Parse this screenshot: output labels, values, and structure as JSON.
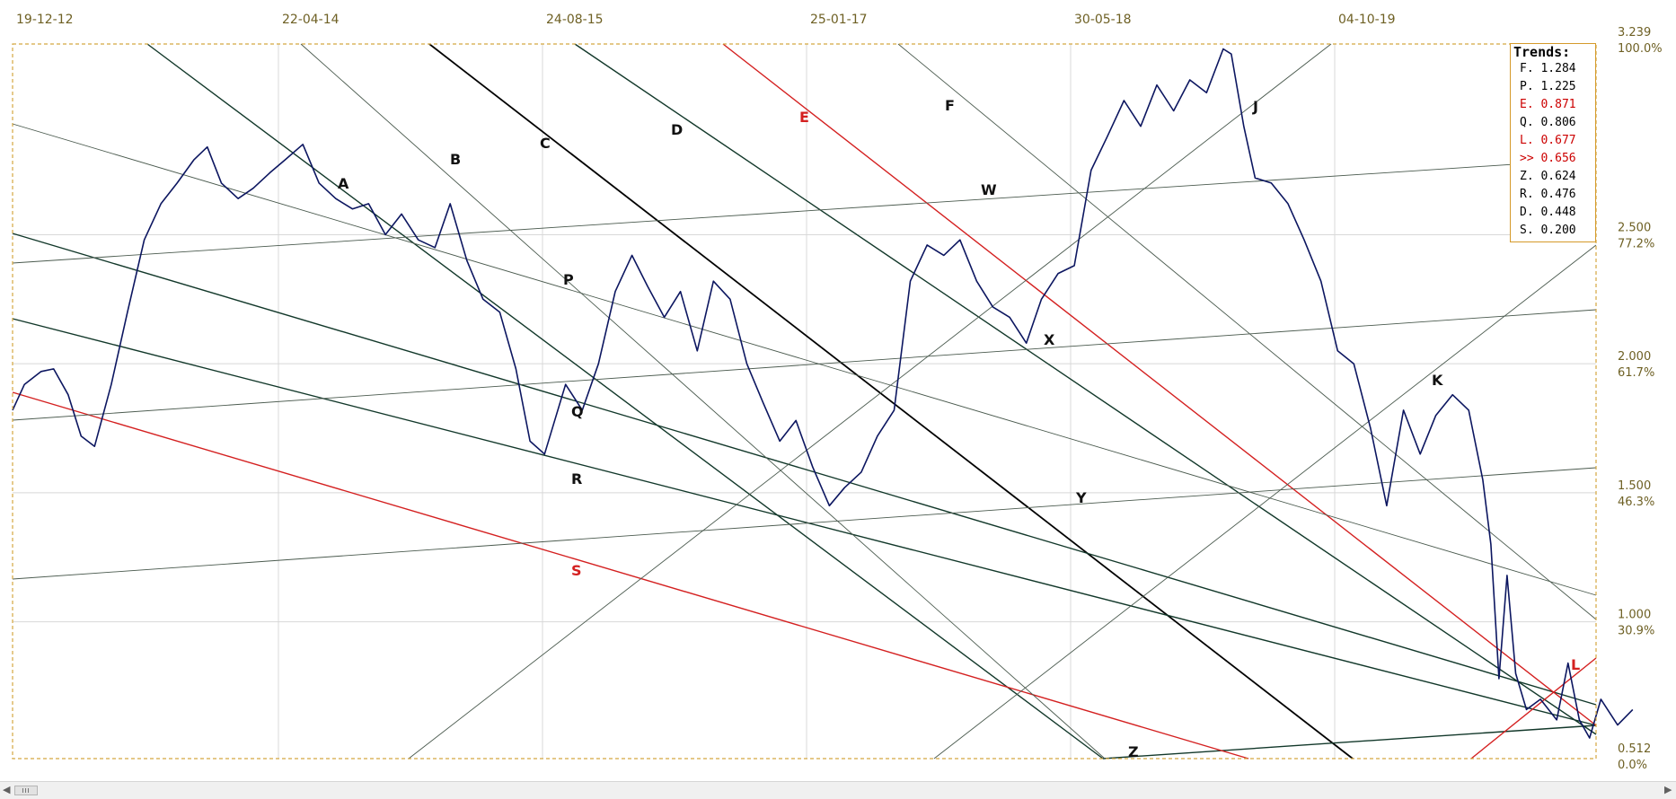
{
  "chart_data": {
    "type": "line",
    "title": "",
    "xlabel": "",
    "ylabel": "",
    "x_tick_labels": [
      "19-12-12",
      "22-04-14",
      "24-08-15",
      "25-01-17",
      "30-05-18",
      "04-10-19"
    ],
    "y_ticks": [
      {
        "value": 3.239,
        "value_label": "3.239",
        "pct_label": "100.0%"
      },
      {
        "value": 2.5,
        "value_label": "2.500",
        "pct_label": "77.2%"
      },
      {
        "value": 2.0,
        "value_label": "2.000",
        "pct_label": "61.7%"
      },
      {
        "value": 1.5,
        "value_label": "1.500",
        "pct_label": "46.3%"
      },
      {
        "value": 1.0,
        "value_label": "1.000",
        "pct_label": "30.9%"
      },
      {
        "value": 0.512,
        "value_label": "0.512",
        "pct_label": "0.0%"
      }
    ],
    "xlim": [
      "2012-12-19",
      "2021-01-01"
    ],
    "ylim": [
      0.47,
      3.239
    ],
    "grid": true,
    "legend_position": "top-right",
    "colors": {
      "price": "#0c1660",
      "dark_line": "#12382a",
      "red_line": "#d42020",
      "black_line": "#000000",
      "thin_line": "#4a5a4e",
      "frame": "#d4a640",
      "axis_text": "#6e6024"
    },
    "series": [
      {
        "values": [
          [
            "2012-12-19",
            1.82
          ],
          [
            "2013-01-10",
            1.92
          ],
          [
            "2013-02-10",
            1.97
          ],
          [
            "2013-03-05",
            1.98
          ],
          [
            "2013-04-01",
            1.88
          ],
          [
            "2013-04-25",
            1.72
          ],
          [
            "2013-05-20",
            1.68
          ],
          [
            "2013-06-20",
            1.92
          ],
          [
            "2013-07-20",
            2.2
          ],
          [
            "2013-08-20",
            2.48
          ],
          [
            "2013-09-20",
            2.62
          ],
          [
            "2013-10-20",
            2.7
          ],
          [
            "2013-11-20",
            2.79
          ],
          [
            "2013-12-15",
            2.84
          ],
          [
            "2014-01-10",
            2.7
          ],
          [
            "2014-02-10",
            2.64
          ],
          [
            "2014-03-10",
            2.68
          ],
          [
            "2014-04-10",
            2.74
          ],
          [
            "2014-05-08",
            2.79
          ],
          [
            "2014-06-10",
            2.85
          ],
          [
            "2014-07-10",
            2.7
          ],
          [
            "2014-08-10",
            2.64
          ],
          [
            "2014-09-10",
            2.6
          ],
          [
            "2014-10-10",
            2.62
          ],
          [
            "2014-11-10",
            2.5
          ],
          [
            "2014-12-10",
            2.58
          ],
          [
            "2015-01-10",
            2.48
          ],
          [
            "2015-02-10",
            2.45
          ],
          [
            "2015-03-10",
            2.62
          ],
          [
            "2015-04-10",
            2.4
          ],
          [
            "2015-05-10",
            2.25
          ],
          [
            "2015-06-10",
            2.2
          ],
          [
            "2015-07-10",
            1.98
          ],
          [
            "2015-08-05",
            1.7
          ],
          [
            "2015-09-01",
            1.65
          ],
          [
            "2015-10-10",
            1.92
          ],
          [
            "2015-11-10",
            1.82
          ],
          [
            "2015-12-10",
            2.0
          ],
          [
            "2016-01-10",
            2.28
          ],
          [
            "2016-02-10",
            2.42
          ],
          [
            "2016-03-10",
            2.3
          ],
          [
            "2016-04-10",
            2.18
          ],
          [
            "2016-05-10",
            2.28
          ],
          [
            "2016-06-10",
            2.05
          ],
          [
            "2016-07-10",
            2.32
          ],
          [
            "2016-08-10",
            2.25
          ],
          [
            "2016-09-10",
            2.0
          ],
          [
            "2016-10-10",
            1.85
          ],
          [
            "2016-11-10",
            1.7
          ],
          [
            "2016-12-10",
            1.78
          ],
          [
            "2017-01-10",
            1.6
          ],
          [
            "2017-02-10",
            1.45
          ],
          [
            "2017-03-10",
            1.52
          ],
          [
            "2017-04-10",
            1.58
          ],
          [
            "2017-05-10",
            1.72
          ],
          [
            "2017-06-10",
            1.82
          ],
          [
            "2017-07-10",
            2.32
          ],
          [
            "2017-08-10",
            2.46
          ],
          [
            "2017-09-10",
            2.42
          ],
          [
            "2017-10-10",
            2.48
          ],
          [
            "2017-11-10",
            2.32
          ],
          [
            "2017-12-10",
            2.22
          ],
          [
            "2018-01-10",
            2.18
          ],
          [
            "2018-02-10",
            2.08
          ],
          [
            "2018-03-10",
            2.25
          ],
          [
            "2018-04-10",
            2.35
          ],
          [
            "2018-05-10",
            2.38
          ],
          [
            "2018-06-10",
            2.75
          ],
          [
            "2018-07-10",
            2.88
          ],
          [
            "2018-08-10",
            3.02
          ],
          [
            "2018-09-10",
            2.92
          ],
          [
            "2018-10-10",
            3.08
          ],
          [
            "2018-11-10",
            2.98
          ],
          [
            "2018-12-10",
            3.1
          ],
          [
            "2019-01-10",
            3.05
          ],
          [
            "2019-02-10",
            3.22
          ],
          [
            "2019-02-25",
            3.2
          ],
          [
            "2019-03-20",
            2.92
          ],
          [
            "2019-04-10",
            2.72
          ],
          [
            "2019-05-10",
            2.7
          ],
          [
            "2019-06-10",
            2.62
          ],
          [
            "2019-07-10",
            2.48
          ],
          [
            "2019-08-10",
            2.32
          ],
          [
            "2019-09-10",
            2.05
          ],
          [
            "2019-10-10",
            2.0
          ],
          [
            "2019-11-10",
            1.75
          ],
          [
            "2019-12-10",
            1.45
          ],
          [
            "2020-01-10",
            1.82
          ],
          [
            "2020-02-10",
            1.65
          ],
          [
            "2020-03-10",
            1.8
          ],
          [
            "2020-04-10",
            1.88
          ],
          [
            "2020-05-10",
            1.82
          ],
          [
            "2020-06-05",
            1.55
          ],
          [
            "2020-06-20",
            1.3
          ],
          [
            "2020-07-05",
            0.78
          ],
          [
            "2020-07-20",
            1.18
          ],
          [
            "2020-08-05",
            0.8
          ],
          [
            "2020-08-25",
            0.66
          ],
          [
            "2020-09-20",
            0.7
          ],
          [
            "2020-10-20",
            0.62
          ],
          [
            "2020-11-10",
            0.84
          ],
          [
            "2020-12-01",
            0.62
          ],
          [
            "2020-12-20",
            0.55
          ],
          [
            "2021-01-10",
            0.7
          ],
          [
            "2021-02-10",
            0.6
          ],
          [
            "2021-03-10",
            0.66
          ]
        ]
      }
    ],
    "annotations": [
      "A",
      "B",
      "C",
      "D",
      "E",
      "F",
      "J",
      "K",
      "L",
      "P",
      "Q",
      "R",
      "S",
      "W",
      "X",
      "Y",
      "Z"
    ],
    "legend": {
      "title": "Trends:",
      "items": [
        {
          "label": "F.",
          "value": "1.284",
          "highlight": false
        },
        {
          "label": "P.",
          "value": "1.225",
          "highlight": false
        },
        {
          "label": "E.",
          "value": "0.871",
          "highlight": true
        },
        {
          "label": "Q.",
          "value": "0.806",
          "highlight": false
        },
        {
          "label": "L.",
          "value": "0.677",
          "highlight": true
        },
        {
          "label": ">>",
          "value": "0.656",
          "highlight": true
        },
        {
          "label": "Z.",
          "value": "0.624",
          "highlight": false
        },
        {
          "label": "R.",
          "value": "0.476",
          "highlight": false
        },
        {
          "label": "D.",
          "value": "0.448",
          "highlight": false
        },
        {
          "label": "S.",
          "value": "0.200",
          "highlight": false
        }
      ]
    }
  }
}
